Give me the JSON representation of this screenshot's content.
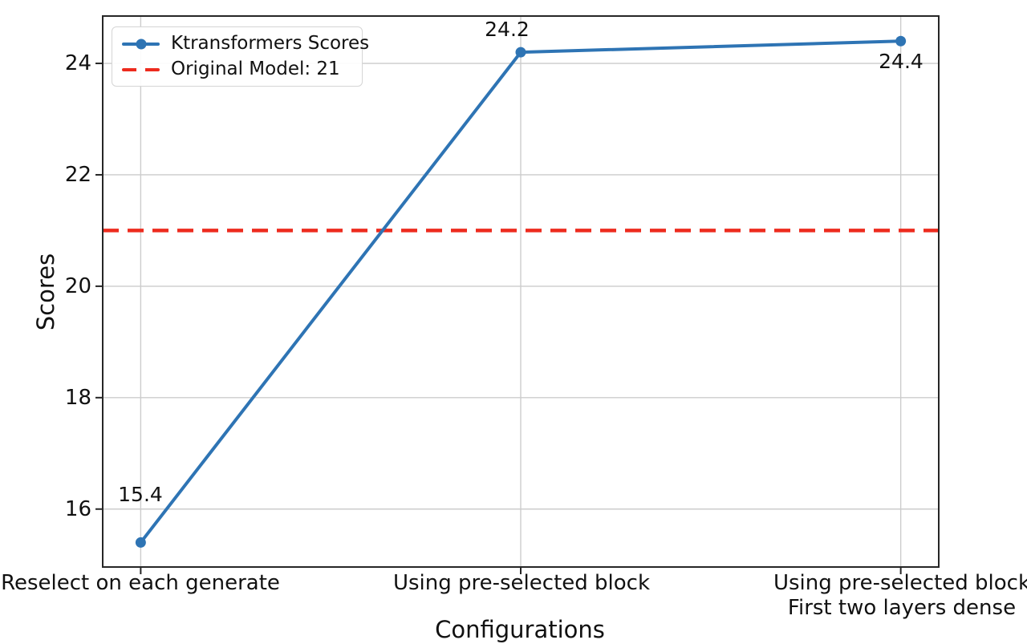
{
  "chart_data": {
    "type": "line",
    "title": "",
    "xlabel": "Configurations",
    "ylabel": "Scores",
    "categories": [
      "Reselect on each generate",
      "Using pre-selected block",
      "Using pre-selected block\nFirst two layers dense"
    ],
    "series": [
      {
        "name": "Ktransformers Scores",
        "values": [
          15.4,
          24.2,
          24.4
        ],
        "color": "#2e74b4",
        "marker": "circle",
        "linewidth": 4
      }
    ],
    "reference_line": {
      "name": "Original Model: 21",
      "value": 21,
      "color": "#ed2b1e",
      "style": "dashed",
      "linewidth": 4.5
    },
    "annotations": [
      "15.4",
      "24.2",
      "24.4"
    ],
    "ytick_labels": [
      "24",
      "22",
      "20",
      "18",
      "16"
    ],
    "ytick_values": [
      24,
      22,
      20,
      18,
      16
    ],
    "ylim": [
      14.96,
      24.85
    ],
    "grid": true,
    "legend": {
      "position": "upper left",
      "entries": [
        "Ktransformers Scores",
        "Original Model: 21"
      ]
    },
    "colors": {
      "grid": "#cccccc",
      "spine": "#262626",
      "text": "#111111"
    }
  }
}
